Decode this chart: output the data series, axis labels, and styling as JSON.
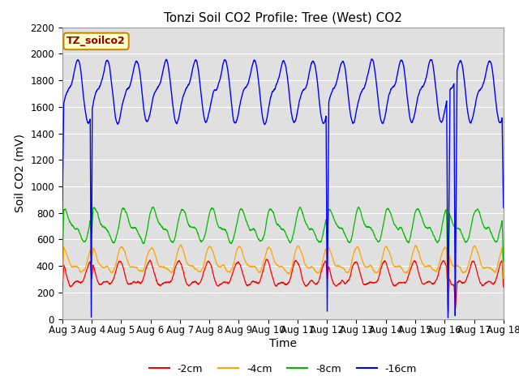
{
  "title": "Tonzi Soil CO2 Profile: Tree (West) CO2",
  "ylabel": "Soil CO2 (mV)",
  "xlabel": "Time",
  "ylim": [
    0,
    2200
  ],
  "yticks": [
    0,
    200,
    400,
    600,
    800,
    1000,
    1200,
    1400,
    1600,
    1800,
    2000,
    2200
  ],
  "xtick_labels": [
    "Aug 3",
    "Aug 4",
    "Aug 5",
    "Aug 6",
    "Aug 7",
    "Aug 8",
    "Aug 9",
    "Aug 10",
    "Aug 11",
    "Aug 12",
    "Aug 13",
    "Aug 14",
    "Aug 15",
    "Aug 16",
    "Aug 17",
    "Aug 18"
  ],
  "colors": {
    "m2cm": "#ff0000",
    "m4cm": "#ffa500",
    "m8cm": "#00bb00",
    "m16cm": "#0000ff"
  },
  "legend_label": "TZ_soilco2",
  "legend_bg": "#ffffcc",
  "legend_border": "#cc8800",
  "bg_color": "#e0e0e0",
  "title_fontsize": 11,
  "axis_fontsize": 10,
  "tick_fontsize": 8.5
}
